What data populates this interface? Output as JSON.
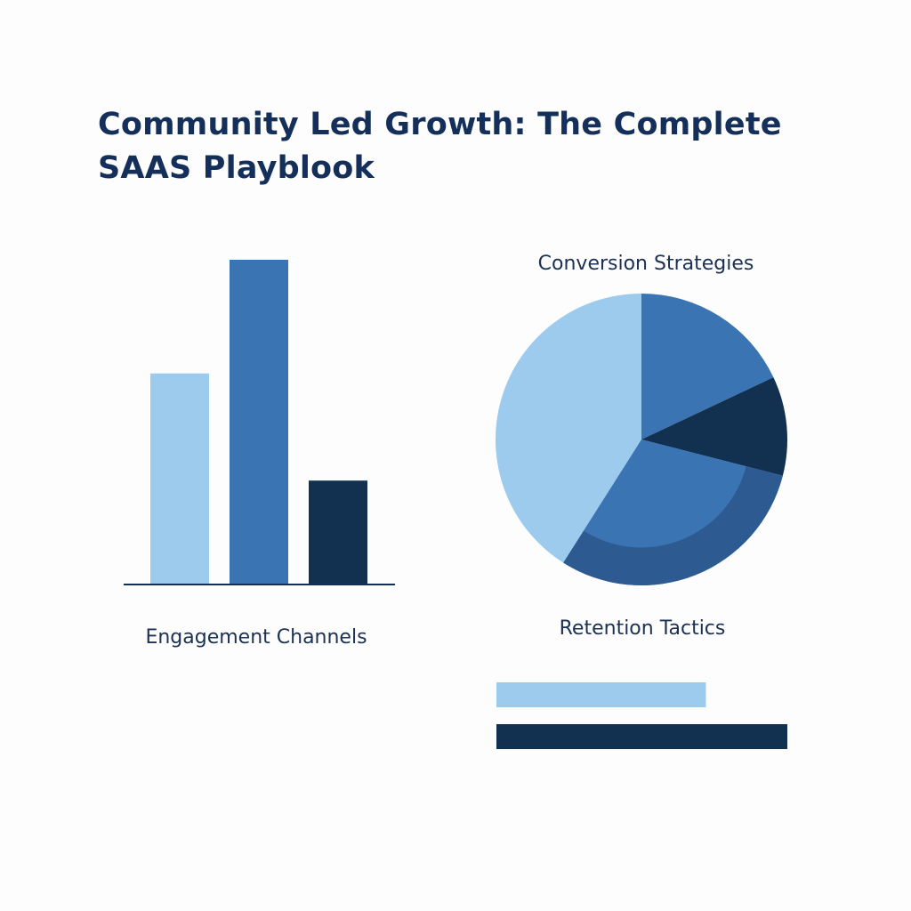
{
  "title_lines": [
    "Community Led Growth: The Complete",
    "SAAS Playblook"
  ],
  "colors": {
    "light": "#9dcbee",
    "mid": "#3b74b2",
    "dark": "#12304f",
    "shade": "#2e5a92"
  },
  "chart_data": [
    {
      "type": "bar",
      "title": "",
      "xlabel": "Engagement Channels",
      "ylabel": "",
      "categories": [
        "",
        "",
        ""
      ],
      "values": [
        65,
        100,
        32
      ],
      "ylim": [
        0,
        100
      ],
      "colors": [
        "light",
        "mid",
        "dark"
      ],
      "grid": false,
      "legend": "none"
    },
    {
      "type": "pie",
      "title": "Conversion Strategies",
      "labels": [
        "",
        "",
        "",
        ""
      ],
      "values": [
        18,
        11,
        30,
        41
      ],
      "colors": [
        "mid",
        "dark",
        "mid",
        "light"
      ],
      "legend": "none"
    },
    {
      "type": "bar",
      "orientation": "horizontal",
      "title": "Retention Tactics",
      "categories": [
        "",
        ""
      ],
      "values": [
        72,
        100
      ],
      "xlim": [
        0,
        100
      ],
      "colors": [
        "light",
        "dark"
      ],
      "grid": false,
      "legend": "none"
    }
  ]
}
